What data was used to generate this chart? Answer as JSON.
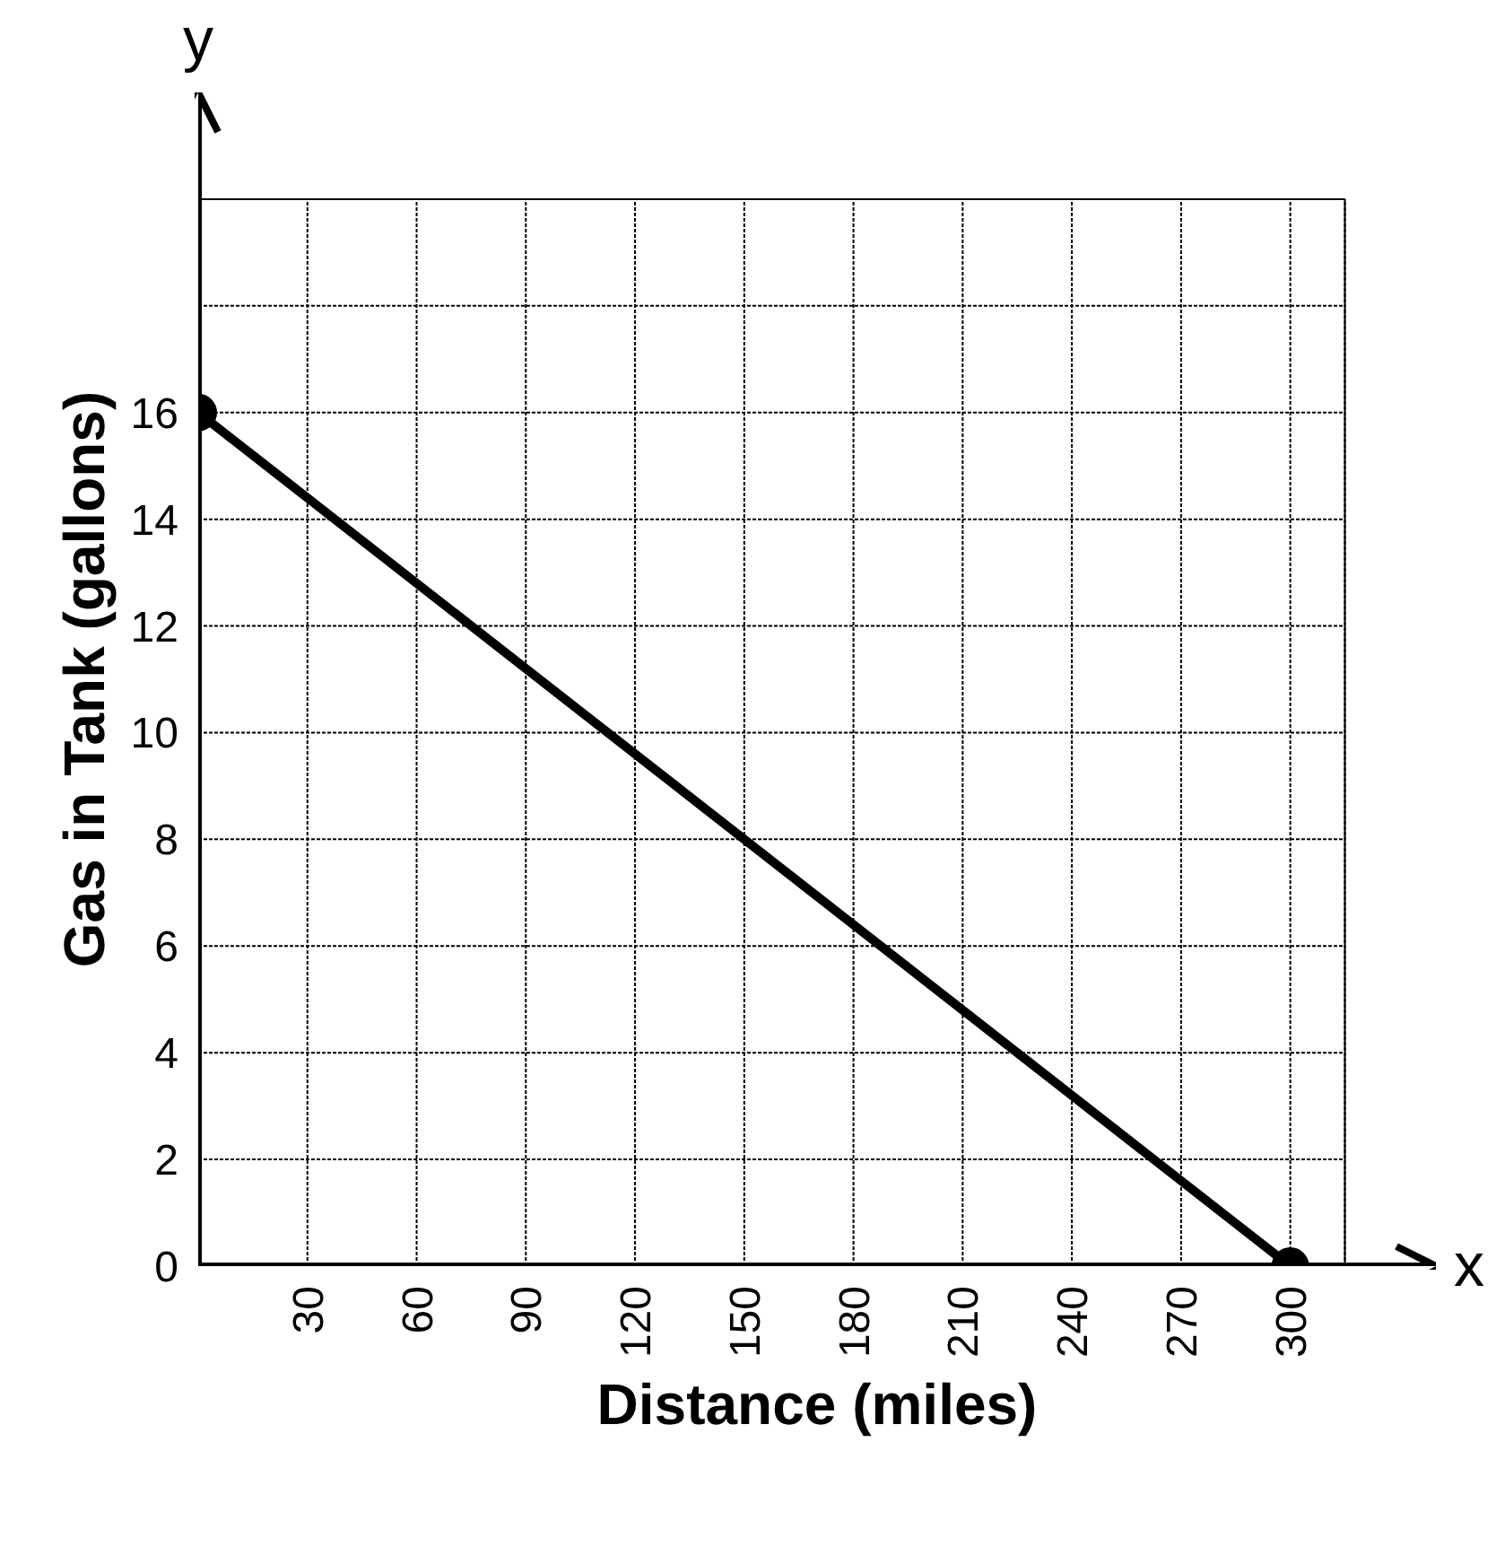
{
  "chart_data": {
    "type": "line",
    "xlabel": "Distance (miles)",
    "ylabel": "Gas in Tank (gallons)",
    "x": [
      0,
      300
    ],
    "series": [
      {
        "color": "#000000",
        "values": [
          16,
          0
        ]
      }
    ],
    "xlim": [
      0,
      340
    ],
    "ylim": [
      0,
      22
    ],
    "xticks": [
      30,
      60,
      90,
      120,
      150,
      180,
      210,
      240,
      270,
      300,
      {
        "value": 315,
        "label": null
      }
    ],
    "yticks": [
      0,
      2,
      4,
      6,
      8,
      10,
      12,
      14,
      16,
      {
        "value": 18,
        "label": null
      },
      {
        "value": 20,
        "label": null
      }
    ],
    "annotations": [
      "x",
      "y"
    ],
    "grid": true,
    "marker": "circle",
    "line_style": "solid"
  }
}
